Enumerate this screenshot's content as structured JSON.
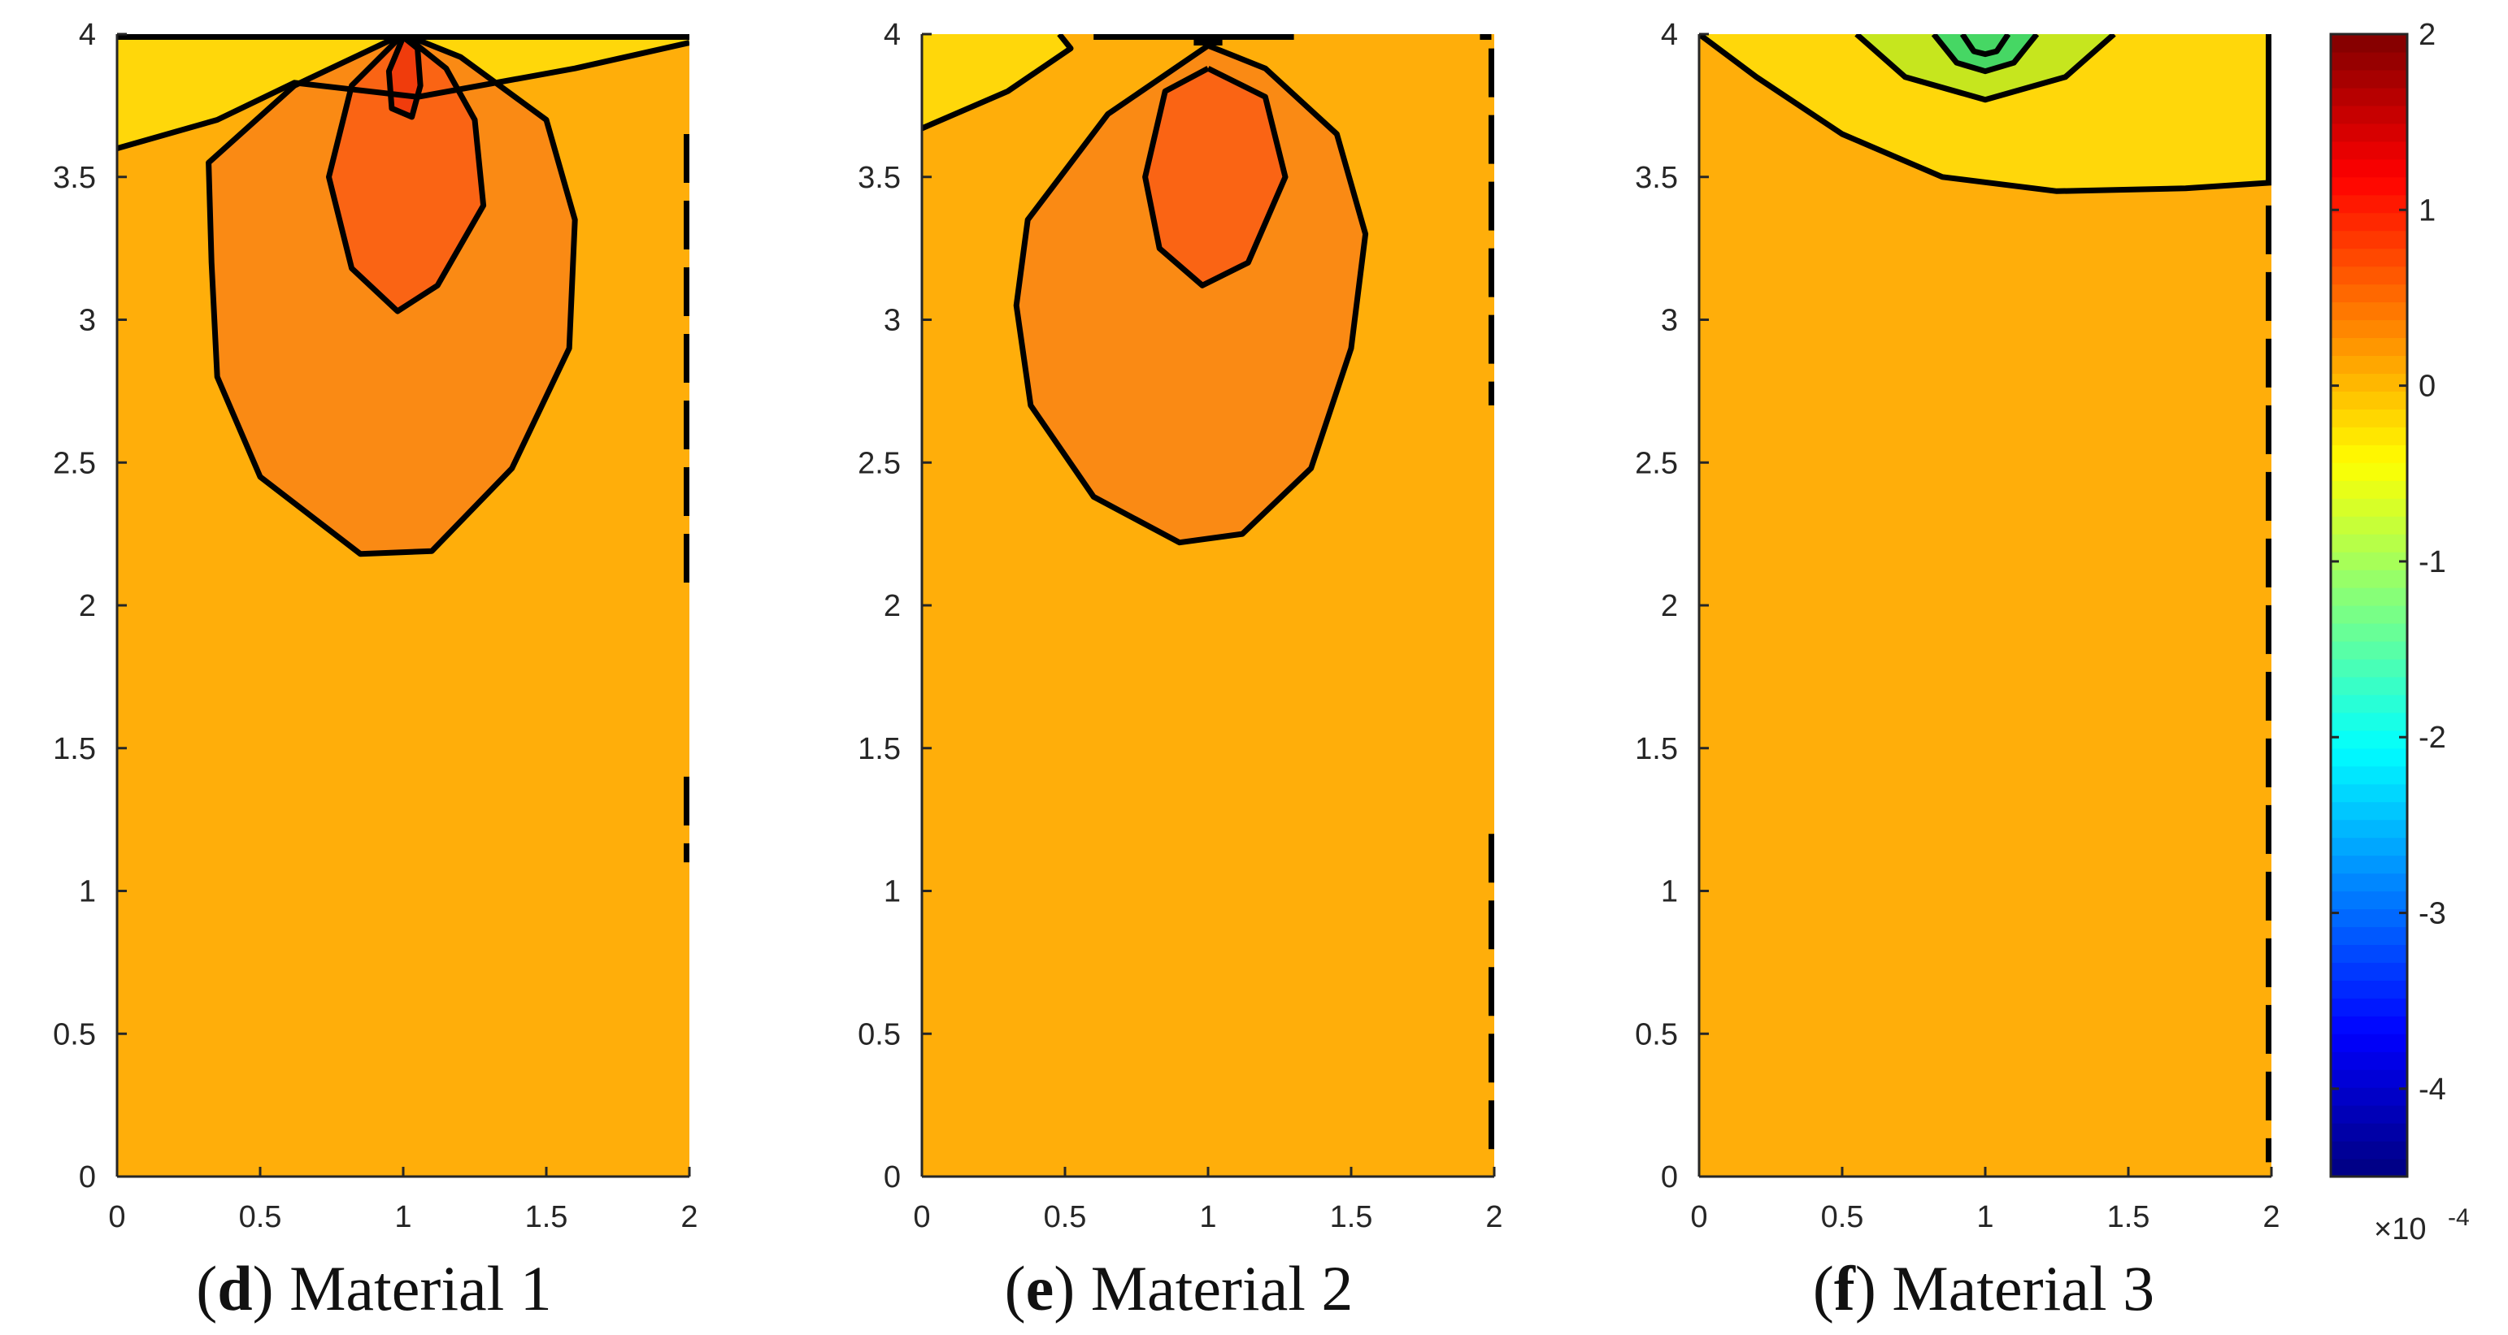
{
  "figure": {
    "colors": {
      "background_level": "#FFAE0A",
      "level_1": "#FA8A14",
      "level_2": "#FA6414",
      "level_3": "#F03C0C",
      "low_level": "#FFD70A",
      "cool_1": "#C6E61E",
      "cool_2": "#46D764"
    },
    "colorbar": {
      "ticks": [
        "2",
        "1",
        "0",
        "-1",
        "-2",
        "-3",
        "-4"
      ],
      "tick_values": [
        2,
        1,
        0,
        -1,
        -2,
        -3,
        -4
      ],
      "min": -4.5,
      "max": 2,
      "exponent_label": "×10",
      "exponent_power": "-4",
      "colormap": "jet"
    }
  },
  "chart_data": [
    {
      "type": "contour",
      "caption": {
        "letter": "d",
        "text": "Material 1",
        "open": "(",
        "close": ")"
      },
      "xlim": [
        0,
        2
      ],
      "ylim": [
        0,
        4
      ],
      "xticks": [
        "0",
        "0.5",
        "1",
        "1.5",
        "2"
      ],
      "xtick_values": [
        0,
        0.5,
        1,
        1.5,
        2
      ],
      "yticks": [
        "0",
        "0.5",
        "1",
        "1.5",
        "2",
        "2.5",
        "3",
        "3.5",
        "4"
      ],
      "ytick_values": [
        0,
        0.5,
        1,
        1.5,
        2,
        2.5,
        3,
        3.5,
        4
      ],
      "regions": [
        {
          "name": "low-near-surface-region",
          "color_key": "low_level",
          "points": [
            [
              0,
              4
            ],
            [
              2,
              4
            ],
            [
              2,
              3.97
            ],
            [
              1.6,
              3.88
            ],
            [
              1.05,
              3.78
            ],
            [
              0.62,
              3.83
            ],
            [
              0.35,
              3.7
            ],
            [
              0,
              3.6
            ]
          ]
        },
        {
          "name": "outer-contour-region",
          "color_key": "level_1",
          "points": [
            [
              1,
              4
            ],
            [
              0.62,
              3.82
            ],
            [
              0.32,
              3.55
            ],
            [
              0.33,
              3.2
            ],
            [
              0.35,
              2.8
            ],
            [
              0.5,
              2.45
            ],
            [
              0.85,
              2.18
            ],
            [
              1.1,
              2.19
            ],
            [
              1.38,
              2.48
            ],
            [
              1.58,
              2.9
            ],
            [
              1.6,
              3.35
            ],
            [
              1.5,
              3.7
            ],
            [
              1.2,
              3.92
            ]
          ]
        },
        {
          "name": "inner-contour-region",
          "color_key": "level_2",
          "points": [
            [
              1,
              4
            ],
            [
              0.82,
              3.82
            ],
            [
              0.74,
              3.5
            ],
            [
              0.82,
              3.18
            ],
            [
              0.98,
              3.03
            ],
            [
              1.12,
              3.12
            ],
            [
              1.28,
              3.4
            ],
            [
              1.25,
              3.7
            ],
            [
              1.15,
              3.88
            ]
          ]
        },
        {
          "name": "core-contour-region",
          "color_key": "level_3",
          "points": [
            [
              1,
              3.99
            ],
            [
              0.95,
              3.87
            ],
            [
              0.96,
              3.74
            ],
            [
              1.03,
              3.71
            ],
            [
              1.06,
              3.82
            ],
            [
              1.05,
              3.95
            ]
          ]
        }
      ],
      "lines": [
        {
          "points": [
            [
              0,
              3.6
            ],
            [
              0.35,
              3.7
            ],
            [
              0.62,
              3.83
            ],
            [
              1.05,
              3.78
            ],
            [
              1.6,
              3.88
            ],
            [
              2,
              3.97
            ]
          ]
        },
        {
          "points": [
            [
              1,
              4
            ],
            [
              0.62,
              3.82
            ],
            [
              0.32,
              3.55
            ],
            [
              0.33,
              3.2
            ],
            [
              0.35,
              2.8
            ],
            [
              0.5,
              2.45
            ],
            [
              0.85,
              2.18
            ],
            [
              1.1,
              2.19
            ],
            [
              1.38,
              2.48
            ],
            [
              1.58,
              2.9
            ],
            [
              1.6,
              3.35
            ],
            [
              1.5,
              3.7
            ],
            [
              1.2,
              3.92
            ],
            [
              1,
              4
            ]
          ]
        },
        {
          "points": [
            [
              1,
              4
            ],
            [
              0.82,
              3.82
            ],
            [
              0.74,
              3.5
            ],
            [
              0.82,
              3.18
            ],
            [
              0.98,
              3.03
            ],
            [
              1.12,
              3.12
            ],
            [
              1.28,
              3.4
            ],
            [
              1.25,
              3.7
            ],
            [
              1.15,
              3.88
            ],
            [
              1,
              4
            ]
          ]
        },
        {
          "points": [
            [
              1,
              3.99
            ],
            [
              0.95,
              3.87
            ],
            [
              0.96,
              3.74
            ],
            [
              1.03,
              3.71
            ],
            [
              1.06,
              3.82
            ],
            [
              1.05,
              3.95
            ],
            [
              1,
              3.99
            ]
          ]
        },
        {
          "points": [
            [
              0,
              3.99
            ],
            [
              2,
              3.99
            ]
          ]
        },
        {
          "points": [
            [
              1.99,
              3.65
            ],
            [
              1.99,
              2.03
            ]
          ],
          "dashed": true
        },
        {
          "points": [
            [
              1.99,
              1.4
            ],
            [
              1.99,
              1.1
            ]
          ],
          "dashed": true
        }
      ]
    },
    {
      "type": "contour",
      "caption": {
        "letter": "e",
        "text": "Material 2",
        "open": "(",
        "close": ")"
      },
      "xlim": [
        0,
        2
      ],
      "ylim": [
        0,
        4
      ],
      "xticks": [
        "0",
        "0.5",
        "1",
        "1.5",
        "2"
      ],
      "xtick_values": [
        0,
        0.5,
        1,
        1.5,
        2
      ],
      "yticks": [
        "0",
        "0.5",
        "1",
        "1.5",
        "2",
        "2.5",
        "3",
        "3.5",
        "4"
      ],
      "ytick_values": [
        0,
        0.5,
        1,
        1.5,
        2,
        2.5,
        3,
        3.5,
        4
      ],
      "regions": [
        {
          "name": "low-near-surface-region",
          "color_key": "low_level",
          "points": [
            [
              0,
              4
            ],
            [
              0.48,
              4
            ],
            [
              0.52,
              3.95
            ],
            [
              0.3,
              3.8
            ],
            [
              0,
              3.67
            ]
          ]
        },
        {
          "name": "outer-contour-region",
          "color_key": "level_1",
          "points": [
            [
              1,
              3.96
            ],
            [
              0.65,
              3.72
            ],
            [
              0.37,
              3.35
            ],
            [
              0.33,
              3.05
            ],
            [
              0.38,
              2.7
            ],
            [
              0.6,
              2.38
            ],
            [
              0.9,
              2.22
            ],
            [
              1.12,
              2.25
            ],
            [
              1.36,
              2.48
            ],
            [
              1.5,
              2.9
            ],
            [
              1.55,
              3.3
            ],
            [
              1.45,
              3.65
            ],
            [
              1.2,
              3.88
            ]
          ]
        },
        {
          "name": "inner-contour-region",
          "color_key": "level_2",
          "points": [
            [
              1,
              3.88
            ],
            [
              0.85,
              3.8
            ],
            [
              0.78,
              3.5
            ],
            [
              0.83,
              3.25
            ],
            [
              0.98,
              3.12
            ],
            [
              1.14,
              3.2
            ],
            [
              1.27,
              3.5
            ],
            [
              1.2,
              3.78
            ]
          ]
        }
      ],
      "lines": [
        {
          "points": [
            [
              0,
              3.67
            ],
            [
              0.3,
              3.8
            ],
            [
              0.52,
              3.95
            ],
            [
              0.48,
              4
            ]
          ]
        },
        {
          "points": [
            [
              1,
              3.96
            ],
            [
              0.65,
              3.72
            ],
            [
              0.37,
              3.35
            ],
            [
              0.33,
              3.05
            ],
            [
              0.38,
              2.7
            ],
            [
              0.6,
              2.38
            ],
            [
              0.9,
              2.22
            ],
            [
              1.12,
              2.25
            ],
            [
              1.36,
              2.48
            ],
            [
              1.5,
              2.9
            ],
            [
              1.55,
              3.3
            ],
            [
              1.45,
              3.65
            ],
            [
              1.2,
              3.88
            ],
            [
              1,
              3.96
            ]
          ]
        },
        {
          "points": [
            [
              1,
              3.88
            ],
            [
              0.85,
              3.8
            ],
            [
              0.78,
              3.5
            ],
            [
              0.83,
              3.25
            ],
            [
              0.98,
              3.12
            ],
            [
              1.14,
              3.2
            ],
            [
              1.27,
              3.5
            ],
            [
              1.2,
              3.78
            ],
            [
              1,
              3.88
            ]
          ]
        },
        {
          "points": [
            [
              0.6,
              3.99
            ],
            [
              1.3,
              3.99
            ]
          ]
        },
        {
          "points": [
            [
              0.95,
              3.97
            ],
            [
              1.05,
              3.97
            ]
          ]
        },
        {
          "points": [
            [
              1.95,
              3.99
            ],
            [
              1.99,
              3.99
            ]
          ]
        },
        {
          "points": [
            [
              1.99,
              3.95
            ],
            [
              1.99,
              2.7
            ]
          ],
          "dashed": true
        },
        {
          "points": [
            [
              1.99,
              1.2
            ],
            [
              1.99,
              0.05
            ]
          ],
          "dashed": true
        }
      ]
    },
    {
      "type": "contour",
      "caption": {
        "letter": "f",
        "text": "Material 3",
        "open": "(",
        "close": ")"
      },
      "xlim": [
        0,
        2
      ],
      "ylim": [
        0,
        4
      ],
      "xticks": [
        "0",
        "0.5",
        "1",
        "1.5",
        "2"
      ],
      "xtick_values": [
        0,
        0.5,
        1,
        1.5,
        2
      ],
      "yticks": [
        "0",
        "0.5",
        "1",
        "1.5",
        "2",
        "2.5",
        "3",
        "3.5",
        "4"
      ],
      "ytick_values": [
        0,
        0.5,
        1,
        1.5,
        2,
        2.5,
        3,
        3.5,
        4
      ],
      "regions": [
        {
          "name": "low-near-surface-region",
          "color_key": "low_level",
          "points": [
            [
              0,
              4
            ],
            [
              2,
              4
            ],
            [
              2,
              3.48
            ],
            [
              1.7,
              3.46
            ],
            [
              1.25,
              3.45
            ],
            [
              0.85,
              3.5
            ],
            [
              0.5,
              3.65
            ],
            [
              0.2,
              3.85
            ]
          ]
        },
        {
          "name": "cool-contour-region",
          "color_key": "cool_1",
          "points": [
            [
              0.55,
              4
            ],
            [
              0.72,
              3.85
            ],
            [
              1,
              3.77
            ],
            [
              1.28,
              3.85
            ],
            [
              1.45,
              4
            ]
          ]
        },
        {
          "name": "cooler-contour-region",
          "color_key": "cool_2",
          "points": [
            [
              0.82,
              4
            ],
            [
              0.9,
              3.9
            ],
            [
              1,
              3.87
            ],
            [
              1.1,
              3.9
            ],
            [
              1.18,
              4
            ]
          ]
        }
      ],
      "lines": [
        {
          "points": [
            [
              0,
              4
            ],
            [
              0.2,
              3.85
            ],
            [
              0.5,
              3.65
            ],
            [
              0.85,
              3.5
            ],
            [
              1.25,
              3.45
            ],
            [
              1.7,
              3.46
            ],
            [
              2,
              3.48
            ]
          ]
        },
        {
          "points": [
            [
              0.55,
              4
            ],
            [
              0.72,
              3.85
            ],
            [
              1,
              3.77
            ],
            [
              1.28,
              3.85
            ],
            [
              1.45,
              4
            ]
          ]
        },
        {
          "points": [
            [
              0.82,
              4
            ],
            [
              0.9,
              3.9
            ],
            [
              1,
              3.87
            ],
            [
              1.1,
              3.9
            ],
            [
              1.18,
              4
            ]
          ]
        },
        {
          "points": [
            [
              0.92,
              4
            ],
            [
              0.96,
              3.94
            ],
            [
              1,
              3.93
            ],
            [
              1.04,
              3.94
            ],
            [
              1.08,
              4
            ]
          ]
        },
        {
          "points": [
            [
              1.99,
              4
            ],
            [
              1.99,
              3.48
            ]
          ]
        },
        {
          "points": [
            [
              1.99,
              3.4
            ],
            [
              1.99,
              0.05
            ]
          ],
          "dashed": true
        }
      ]
    }
  ]
}
